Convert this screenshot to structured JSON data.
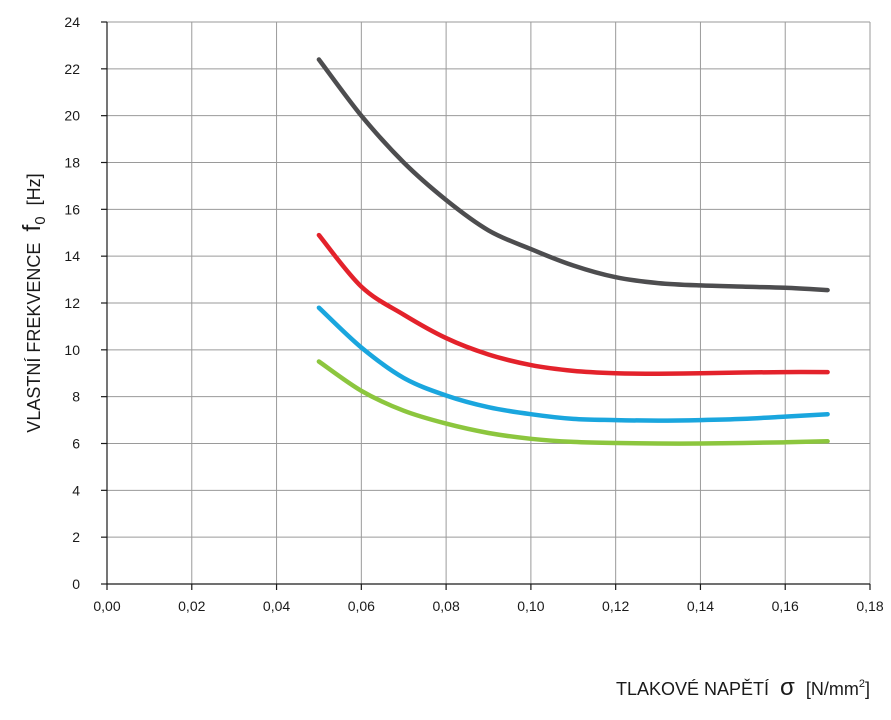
{
  "chart_data": {
    "type": "line",
    "title": "",
    "ylabel": {
      "main": "VLASTNÍ FREKVENCE",
      "symbol": "f",
      "subscript": "0",
      "unit": "[Hz]"
    },
    "xlabel": {
      "main": "TLAKOVÉ NAPĚTÍ",
      "symbol": "σ",
      "unit_prefix": "[N/mm",
      "unit_sup": "2",
      "unit_suffix": "]"
    },
    "xlim": [
      0,
      0.18
    ],
    "ylim": [
      0,
      24
    ],
    "x_ticks": [
      0,
      0.02,
      0.04,
      0.06,
      0.08,
      0.1,
      0.12,
      0.14,
      0.16,
      0.18
    ],
    "x_tick_labels": [
      "0,00",
      "0,02",
      "0,04",
      "0,06",
      "0,08",
      "0,10",
      "0,12",
      "0,14",
      "0,16",
      "0,18"
    ],
    "y_ticks": [
      0,
      2,
      4,
      6,
      8,
      10,
      12,
      14,
      16,
      18,
      20,
      22,
      24
    ],
    "y_tick_labels": [
      "0",
      "2",
      "4",
      "6",
      "8",
      "10",
      "12",
      "14",
      "16",
      "18",
      "20",
      "22",
      "24"
    ],
    "grid": true,
    "series": [
      {
        "color": "#4d4d4f",
        "x": [
          0.05,
          0.06,
          0.07,
          0.08,
          0.09,
          0.1,
          0.11,
          0.12,
          0.13,
          0.14,
          0.15,
          0.16,
          0.17
        ],
        "y": [
          22.4,
          20.0,
          18.0,
          16.4,
          15.1,
          14.3,
          13.6,
          13.1,
          12.85,
          12.75,
          12.7,
          12.65,
          12.55
        ]
      },
      {
        "color": "#e3222b",
        "x": [
          0.05,
          0.06,
          0.07,
          0.08,
          0.09,
          0.1,
          0.11,
          0.12,
          0.13,
          0.14,
          0.15,
          0.16,
          0.17
        ],
        "y": [
          14.9,
          12.7,
          11.5,
          10.5,
          9.8,
          9.35,
          9.1,
          9.0,
          8.98,
          9.0,
          9.03,
          9.05,
          9.05
        ]
      },
      {
        "color": "#1aa6de",
        "x": [
          0.05,
          0.06,
          0.07,
          0.08,
          0.09,
          0.1,
          0.11,
          0.12,
          0.13,
          0.14,
          0.15,
          0.16,
          0.17
        ],
        "y": [
          11.8,
          10.1,
          8.8,
          8.05,
          7.55,
          7.25,
          7.05,
          7.0,
          6.98,
          7.0,
          7.05,
          7.15,
          7.25
        ]
      },
      {
        "color": "#8cc63e",
        "x": [
          0.05,
          0.06,
          0.07,
          0.08,
          0.09,
          0.1,
          0.11,
          0.12,
          0.13,
          0.14,
          0.15,
          0.16,
          0.17
        ],
        "y": [
          9.5,
          8.25,
          7.4,
          6.85,
          6.45,
          6.2,
          6.07,
          6.02,
          6.0,
          6.0,
          6.02,
          6.05,
          6.1
        ]
      }
    ]
  }
}
